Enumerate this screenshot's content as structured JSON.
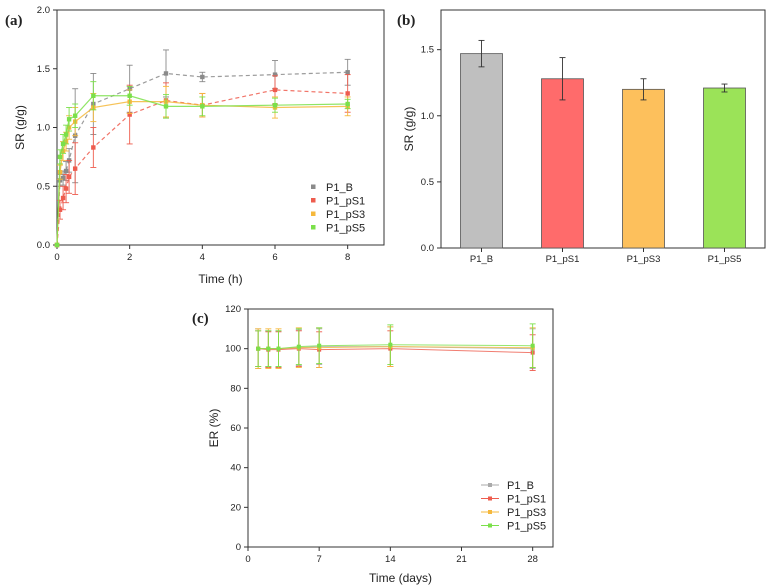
{
  "chart_data": [
    {
      "panel": "(a)",
      "type": "scatter",
      "xlabel": "Time (h)",
      "ylabel": "SR (g/g)",
      "xlim": [
        0,
        9
      ],
      "ylim": [
        0,
        2.0
      ],
      "xticks": [
        "0",
        "2",
        "4",
        "6",
        "8"
      ],
      "yticks": [
        "0.0",
        "0.5",
        "1.0",
        "1.5",
        "2.0"
      ],
      "legend_position": "bottom-right",
      "series": [
        {
          "name": "P1_B",
          "color": "#8a8a8a",
          "x": [
            0,
            0.083,
            0.167,
            0.25,
            0.333,
            0.5,
            1,
            2,
            3,
            4,
            6,
            8
          ],
          "y": [
            0,
            0.55,
            0.57,
            0.63,
            0.72,
            0.93,
            1.2,
            1.33,
            1.46,
            1.43,
            1.45,
            1.47
          ],
          "err": [
            0,
            0.05,
            0.06,
            0.08,
            0.1,
            0.4,
            0.26,
            0.2,
            0.2,
            0.04,
            0.12,
            0.11
          ]
        },
        {
          "name": "P1_pS1",
          "color": "#ee5c4e",
          "x": [
            0,
            0.083,
            0.167,
            0.25,
            0.333,
            0.5,
            1,
            2,
            3,
            4,
            6,
            8
          ],
          "y": [
            0,
            0.3,
            0.4,
            0.48,
            0.58,
            0.65,
            0.83,
            1.11,
            1.23,
            1.19,
            1.32,
            1.29
          ],
          "err": [
            0,
            0.08,
            0.1,
            0.12,
            0.14,
            0.22,
            0.17,
            0.25,
            0.15,
            0.1,
            0.12,
            0.16
          ]
        },
        {
          "name": "P1_pS3",
          "color": "#f5b83c",
          "x": [
            0,
            0.083,
            0.167,
            0.25,
            0.333,
            0.5,
            1,
            2,
            3,
            4,
            6,
            8
          ],
          "y": [
            0,
            0.62,
            0.8,
            0.88,
            1.0,
            1.05,
            1.17,
            1.22,
            1.22,
            1.19,
            1.17,
            1.18
          ],
          "err": [
            0,
            0.06,
            0.08,
            0.08,
            0.1,
            0.12,
            0.12,
            0.1,
            0.13,
            0.1,
            0.09,
            0.08
          ]
        },
        {
          "name": "P1_pS5",
          "color": "#7be04a",
          "x": [
            0,
            0.083,
            0.167,
            0.25,
            0.333,
            0.5,
            1,
            2,
            3,
            4,
            6,
            8
          ],
          "y": [
            0,
            0.75,
            0.86,
            0.94,
            1.07,
            1.1,
            1.27,
            1.27,
            1.18,
            1.18,
            1.19,
            1.2
          ],
          "err": [
            0,
            0.06,
            0.08,
            0.08,
            0.1,
            0.1,
            0.12,
            0.08,
            0.1,
            0.08,
            0.06,
            0.04
          ]
        }
      ]
    },
    {
      "panel": "(b)",
      "type": "bar",
      "ylabel": "SR (g/g)",
      "ylim": [
        0,
        1.8
      ],
      "yticks": [
        "0.0",
        "0.5",
        "1.0",
        "1.5"
      ],
      "categories": [
        "P1_B",
        "P1_pS1",
        "P1_pS3",
        "P1_pS5"
      ],
      "values": [
        1.47,
        1.28,
        1.2,
        1.21
      ],
      "err": [
        0.1,
        0.16,
        0.08,
        0.03
      ],
      "colors": [
        "#bfbfbf",
        "#ff6b6b",
        "#fdc05c",
        "#9be358"
      ]
    },
    {
      "panel": "(c)",
      "type": "line",
      "xlabel": "Time (days)",
      "ylabel": "ER (%)",
      "xlim": [
        0,
        30
      ],
      "ylim": [
        0,
        120
      ],
      "xticks": [
        "0",
        "7",
        "14",
        "21",
        "28"
      ],
      "yticks": [
        "0",
        "20",
        "40",
        "60",
        "80",
        "100",
        "120"
      ],
      "legend_position": "bottom-right",
      "series": [
        {
          "name": "P1_B",
          "color": "#aaaaaa",
          "x": [
            1,
            2,
            3,
            5,
            7,
            14,
            28
          ],
          "y": [
            100,
            100,
            100,
            100.5,
            101,
            101,
            100
          ],
          "err": [
            10,
            9,
            9,
            9,
            9,
            10,
            10
          ]
        },
        {
          "name": "P1_pS1",
          "color": "#ee5c4e",
          "x": [
            1,
            2,
            3,
            5,
            7,
            14,
            28
          ],
          "y": [
            100,
            99.5,
            99.5,
            100,
            99.5,
            100,
            98
          ],
          "err": [
            9,
            9,
            9,
            9,
            9,
            9,
            9
          ]
        },
        {
          "name": "P1_pS3",
          "color": "#f5b83c",
          "x": [
            1,
            2,
            3,
            5,
            7,
            14,
            28
          ],
          "y": [
            100,
            100,
            100,
            100.5,
            100.5,
            101,
            100.5
          ],
          "err": [
            10,
            10,
            10,
            10,
            10,
            10,
            10
          ]
        },
        {
          "name": "P1_pS5",
          "color": "#7be04a",
          "x": [
            1,
            2,
            3,
            5,
            7,
            14,
            28
          ],
          "y": [
            100,
            100,
            100,
            101,
            101.5,
            102,
            101.5
          ],
          "err": [
            9,
            9,
            9,
            9,
            9,
            10,
            11
          ]
        }
      ]
    }
  ]
}
